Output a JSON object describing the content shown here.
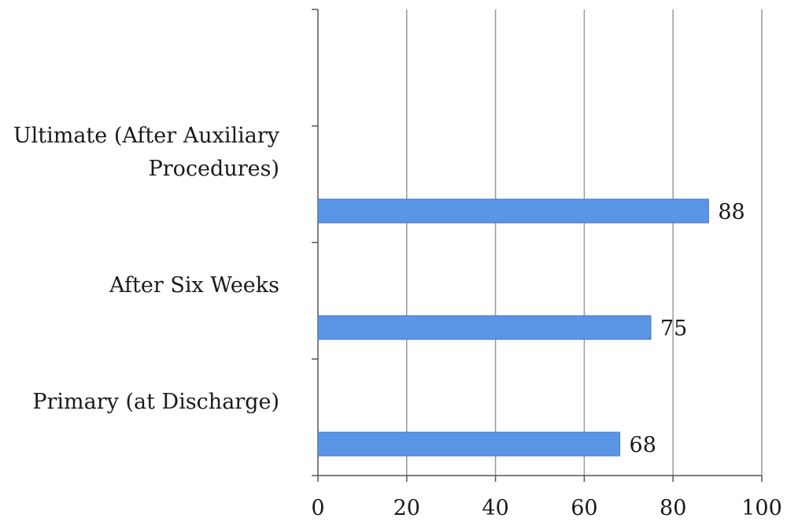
{
  "chart_data": {
    "type": "bar",
    "orientation": "horizontal",
    "categories": [
      "Primary (at Discharge)",
      "After Six Weeks",
      "Ultimate (After Auxiliary Procedures)"
    ],
    "category_lines": [
      [
        "Primary (at Discharge)"
      ],
      [
        "After Six Weeks"
      ],
      [
        "Ultimate (After Auxiliary",
        "Procedures)"
      ]
    ],
    "values": [
      68,
      75,
      88
    ],
    "data_labels": [
      "68",
      "75",
      "88"
    ],
    "xlim": [
      0,
      100
    ],
    "xticks": [
      0,
      20,
      40,
      60,
      80,
      100
    ],
    "xtick_labels": [
      "0",
      "20",
      "40",
      "60",
      "80",
      "100"
    ],
    "grid": "vertical",
    "bar_color": "#5a95e6",
    "bar_border_color": "#3f73c4",
    "grid_color": "#9a9a9a",
    "title": "",
    "xlabel": "",
    "ylabel": ""
  }
}
